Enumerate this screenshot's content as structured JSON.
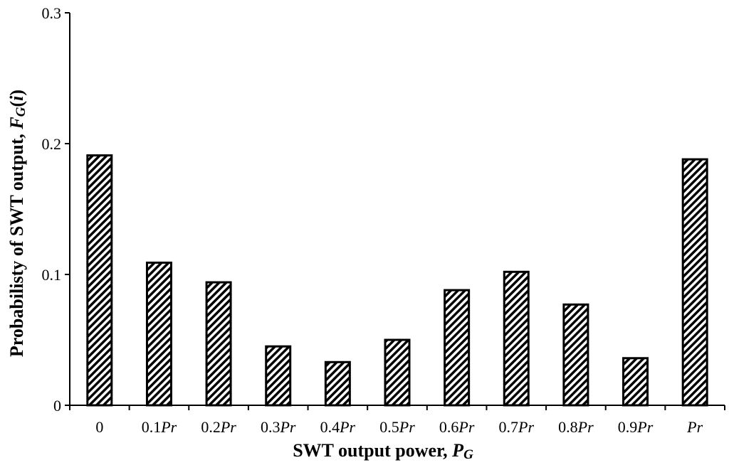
{
  "chart_data": {
    "type": "bar",
    "categories": [
      "0",
      "0.1Pr",
      "0.2Pr",
      "0.3Pr",
      "0.4Pr",
      "0.5Pr",
      "0.6Pr",
      "0.7Pr",
      "0.8Pr",
      "0.9Pr",
      "Pr"
    ],
    "category_labels": [
      {
        "main": "0",
        "italic": ""
      },
      {
        "main": "0.1",
        "italic": "Pr"
      },
      {
        "main": "0.2",
        "italic": "Pr"
      },
      {
        "main": "0.3",
        "italic": "Pr"
      },
      {
        "main": "0.4",
        "italic": "Pr"
      },
      {
        "main": "0.5",
        "italic": "Pr"
      },
      {
        "main": "0.6",
        "italic": "Pr"
      },
      {
        "main": "0.7",
        "italic": "Pr"
      },
      {
        "main": "0.8",
        "italic": "Pr"
      },
      {
        "main": "0.9",
        "italic": "Pr"
      },
      {
        "main": "",
        "italic": "Pr"
      }
    ],
    "values": [
      0.191,
      0.109,
      0.094,
      0.045,
      0.033,
      0.05,
      0.088,
      0.102,
      0.077,
      0.036,
      0.188
    ],
    "title": "",
    "xlabel": {
      "text": "SWT output power, ",
      "symbol": "P",
      "subscript": "G"
    },
    "ylabel": {
      "text": "Probabilisty of SWT output, ",
      "symbol": "F",
      "subscript": "G",
      "paren_open": "(",
      "arg": "i",
      "paren_close": ")"
    },
    "ylim": [
      0,
      0.3
    ],
    "yticks": [
      "0",
      "0.1",
      "0.2",
      "0.3"
    ],
    "ytick_values": [
      0,
      0.1,
      0.2,
      0.3
    ],
    "grid": false,
    "bar_fill": "diagonal-hatch",
    "colors": {
      "bar_stroke": "#000000",
      "hatch": "#000000",
      "background": "#ffffff"
    }
  }
}
